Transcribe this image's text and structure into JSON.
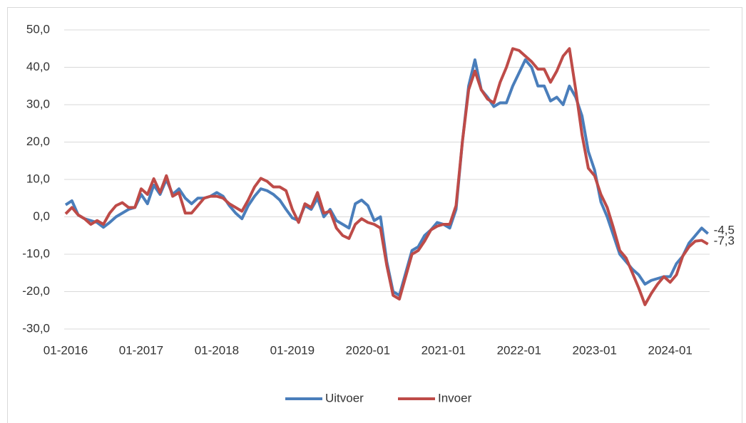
{
  "chart_data": {
    "type": "line",
    "categories": [
      "01-2016",
      null,
      null,
      null,
      null,
      null,
      null,
      null,
      null,
      null,
      null,
      null,
      "01-2017",
      null,
      null,
      null,
      null,
      null,
      null,
      null,
      null,
      null,
      null,
      null,
      "01-2018",
      null,
      null,
      null,
      null,
      null,
      null,
      null,
      null,
      null,
      null,
      null,
      "01-2019",
      null,
      null,
      null,
      null,
      null,
      null,
      null,
      null,
      null,
      null,
      null,
      "2020-01",
      null,
      null,
      null,
      null,
      null,
      null,
      null,
      null,
      null,
      null,
      null,
      "2021-01",
      null,
      null,
      null,
      null,
      null,
      null,
      null,
      null,
      null,
      null,
      null,
      "2022-01",
      null,
      null,
      null,
      null,
      null,
      null,
      null,
      null,
      null,
      null,
      null,
      "2023-01",
      null,
      null,
      null,
      null,
      null,
      null,
      null,
      null,
      null,
      null,
      null,
      "2024-01",
      null,
      null,
      null,
      null,
      null,
      null
    ],
    "series": [
      {
        "name": "Uitvoer",
        "color": "#4a7ebb",
        "values": [
          3.2,
          4.3,
          0.5,
          -0.5,
          -1,
          -1.5,
          -2.8,
          -1.5,
          0,
          1,
          2,
          2.5,
          6,
          3.5,
          8.5,
          6,
          10,
          6,
          7.5,
          5,
          3.5,
          5,
          5,
          5.5,
          6.5,
          5.5,
          3,
          1,
          -0.5,
          3,
          5.5,
          7.5,
          7,
          6,
          4.5,
          2,
          -0.3,
          -1,
          3,
          2,
          5,
          0,
          2,
          -1,
          -2,
          -3,
          3.5,
          4.5,
          3,
          -1,
          0,
          -12,
          -20,
          -21,
          -15,
          -9,
          -8,
          -5,
          -3.5,
          -1.5,
          -2,
          -3,
          2,
          20,
          35,
          42,
          34,
          32,
          29.5,
          30.5,
          30.5,
          35,
          38.5,
          42,
          40,
          35,
          35,
          31,
          32,
          30,
          35,
          32,
          27,
          17.5,
          12.5,
          4,
          0,
          -5,
          -10,
          -12,
          -14,
          -15.5,
          -18,
          -17,
          -16.5,
          -16,
          -16,
          -12.5,
          -10.5,
          -7,
          -5,
          -3,
          -4.5
        ],
        "value_labels": [
          null,
          null,
          null,
          null,
          null,
          null,
          null,
          null,
          null,
          null,
          null,
          null,
          null,
          null,
          null,
          null,
          null,
          null,
          null,
          null,
          null,
          null,
          null,
          null,
          null,
          null,
          null,
          null,
          null,
          null,
          null,
          null,
          null,
          null,
          null,
          null,
          null,
          null,
          null,
          null,
          null,
          null,
          null,
          null,
          null,
          null,
          null,
          null,
          null,
          null,
          null,
          null,
          null,
          null,
          null,
          null,
          null,
          null,
          null,
          null,
          null,
          null,
          null,
          null,
          null,
          null,
          null,
          null,
          null,
          null,
          null,
          null,
          null,
          null,
          null,
          null,
          null,
          null,
          null,
          null,
          null,
          null,
          null,
          null,
          null,
          null,
          null,
          null,
          null,
          null,
          null,
          null,
          null,
          null,
          null,
          null,
          null,
          null,
          null,
          null,
          null,
          null,
          "-4,5"
        ]
      },
      {
        "name": "Invoer",
        "color": "#be4b48",
        "values": [
          0.8,
          2.5,
          0.5,
          -0.5,
          -2,
          -1,
          -2,
          1,
          3,
          3.8,
          2.5,
          2.5,
          7.5,
          6,
          10.2,
          6.5,
          11,
          5.5,
          6.5,
          1,
          1,
          3,
          5,
          5.5,
          5.5,
          5,
          3.5,
          2.5,
          1.5,
          4.5,
          8,
          10.3,
          9.5,
          8,
          8,
          7,
          2,
          -1.5,
          3.5,
          2.5,
          6.5,
          1,
          1.5,
          -3,
          -5,
          -5.8,
          -2,
          -0.5,
          -1.5,
          -2,
          -3,
          -13,
          -21,
          -22,
          -16,
          -10,
          -9,
          -6.5,
          -3.5,
          -2.5,
          -2,
          -2,
          3,
          20,
          34,
          39,
          34,
          31.5,
          30.5,
          36,
          40,
          45,
          44.5,
          43,
          41.5,
          39.5,
          39.5,
          36,
          39,
          43,
          45,
          34,
          22,
          13,
          11,
          6,
          2.5,
          -3,
          -9,
          -11,
          -15,
          -19,
          -23.5,
          -20.5,
          -18,
          -16,
          -17.5,
          -15.5,
          -10.5,
          -8,
          -6.5,
          -6.3,
          -7.3
        ],
        "value_labels": [
          null,
          null,
          null,
          null,
          null,
          null,
          null,
          null,
          null,
          null,
          null,
          null,
          null,
          null,
          null,
          null,
          null,
          null,
          null,
          null,
          null,
          null,
          null,
          null,
          null,
          null,
          null,
          null,
          null,
          null,
          null,
          null,
          null,
          null,
          null,
          null,
          null,
          null,
          null,
          null,
          null,
          null,
          null,
          null,
          null,
          null,
          null,
          null,
          null,
          null,
          null,
          null,
          null,
          null,
          null,
          null,
          null,
          null,
          null,
          null,
          null,
          null,
          null,
          null,
          null,
          null,
          null,
          null,
          null,
          null,
          null,
          null,
          null,
          null,
          null,
          null,
          null,
          null,
          null,
          null,
          null,
          null,
          null,
          null,
          null,
          null,
          null,
          null,
          null,
          null,
          null,
          null,
          null,
          null,
          null,
          null,
          null,
          null,
          null,
          null,
          null,
          null,
          "-7,3"
        ]
      }
    ],
    "ylim": [
      -30,
      50
    ],
    "yticks": [
      {
        "value": -30,
        "label": "-30,0"
      },
      {
        "value": -20,
        "label": "-20,0"
      },
      {
        "value": -10,
        "label": "-10,0"
      },
      {
        "value": 0,
        "label": "0,0"
      },
      {
        "value": 10,
        "label": "10,0"
      },
      {
        "value": 20,
        "label": "20,0"
      },
      {
        "value": 30,
        "label": "30,0"
      },
      {
        "value": 40,
        "label": "40,0"
      },
      {
        "value": 50,
        "label": "50,0"
      }
    ],
    "grid": true,
    "legend": "bottom"
  }
}
